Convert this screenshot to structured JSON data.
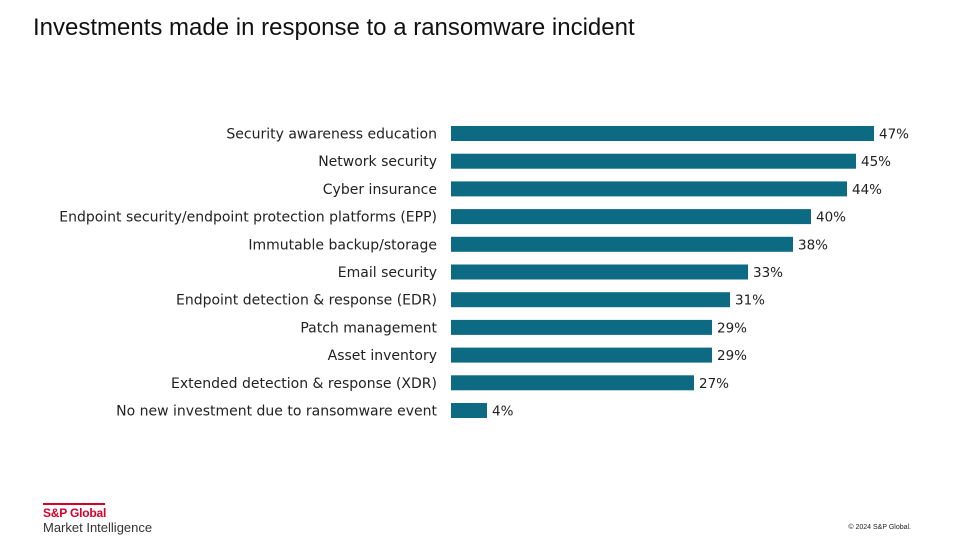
{
  "slide": {
    "title": "Investments made in response to a ransomware incident",
    "copyright": "© 2024 S&P Global."
  },
  "logo": {
    "brand": "S&P Global",
    "subtitle": "Market Intelligence",
    "color": "#d6002a"
  },
  "chart_data": {
    "type": "bar",
    "orientation": "horizontal",
    "title": "",
    "xlabel": "",
    "ylabel": "",
    "bar_color": "#0c6a83",
    "grid": false,
    "legend": "none",
    "xlim": [
      0,
      47
    ],
    "categories": [
      "Security awareness education",
      "Network security",
      "Cyber insurance",
      "Endpoint security/endpoint protection platforms (EPP)",
      "Immutable backup/storage",
      "Email security",
      "Endpoint detection & response (EDR)",
      "Patch management",
      "Asset inventory",
      "Extended detection & response (XDR)",
      "No new investment due to ransomware event"
    ],
    "values": [
      47,
      45,
      44,
      40,
      38,
      33,
      31,
      29,
      29,
      27,
      4
    ],
    "value_labels": [
      "47%",
      "45%",
      "44%",
      "40%",
      "38%",
      "33%",
      "31%",
      "29%",
      "29%",
      "27%",
      "4%"
    ]
  }
}
